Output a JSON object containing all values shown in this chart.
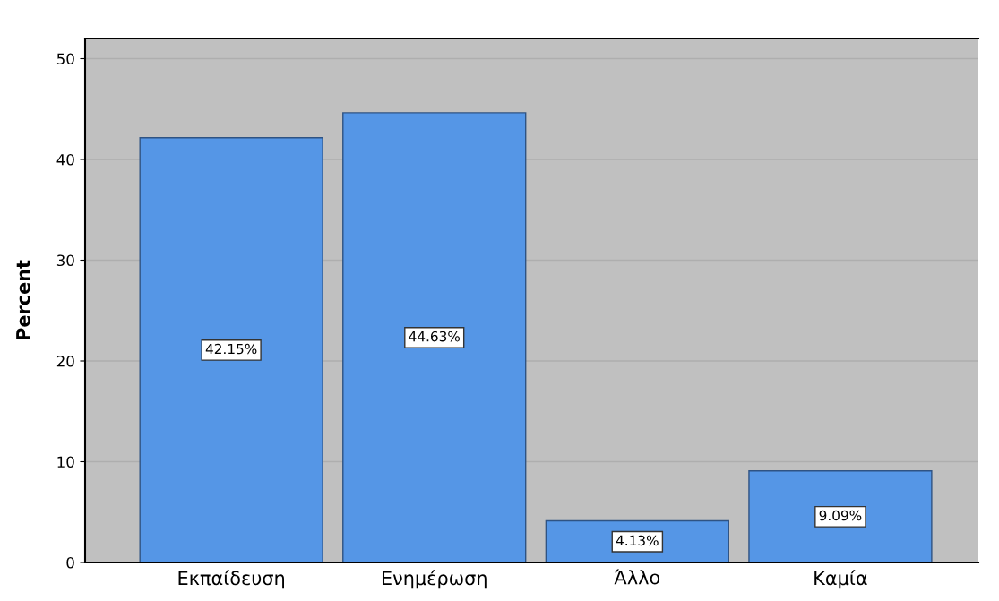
{
  "chart_data": {
    "type": "bar",
    "ylabel": "Percent",
    "categories": [
      "Εκπαίδευση",
      "Ενημέρωση",
      "Άλλο",
      "Καμία"
    ],
    "values": [
      42.15,
      44.63,
      4.13,
      9.09
    ],
    "value_labels": [
      "42.15%",
      "44.63%",
      "4.13%",
      "9.09%"
    ],
    "color": "#5596e6",
    "ylim": [
      0,
      52
    ],
    "yticks": [
      0,
      10,
      20,
      30,
      40,
      50
    ],
    "grid": "y",
    "legend": false
  }
}
